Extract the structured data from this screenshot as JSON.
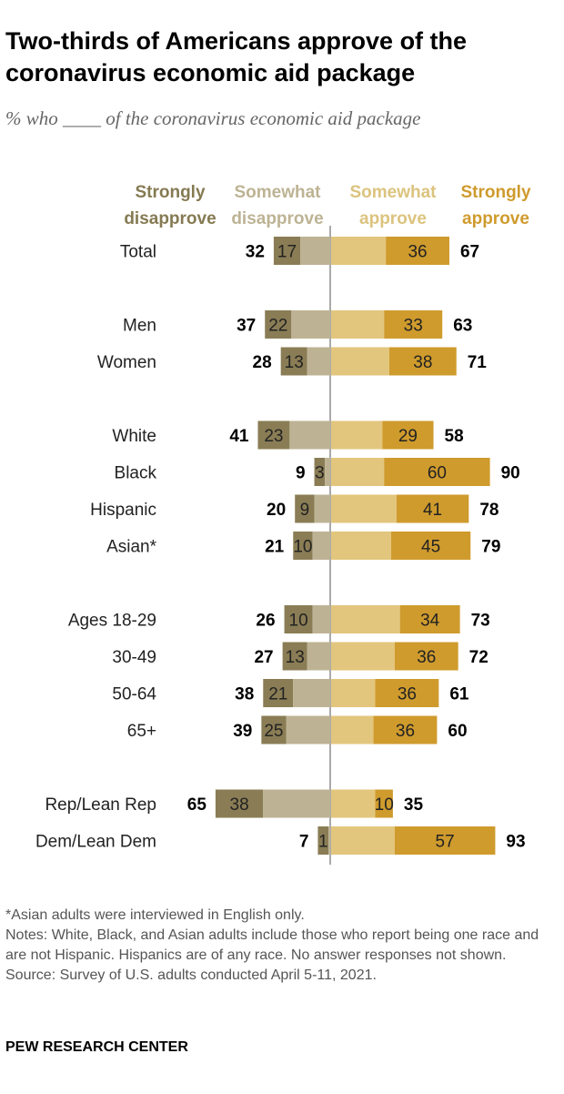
{
  "title": "Two-thirds of Americans approve of the coronavirus economic aid package",
  "subtitle": "% who ____ of the coronavirus economic aid package",
  "chart_data": {
    "type": "bar",
    "orientation": "horizontal-diverging",
    "legend": [
      {
        "name": "Strongly disapprove",
        "color": "#8a7d55"
      },
      {
        "name": "Somewhat disapprove",
        "color": "#bdb394"
      },
      {
        "name": "Somewhat approve",
        "color": "#e3c67d"
      },
      {
        "name": "Strongly approve",
        "color": "#cf9b2d"
      }
    ],
    "legend_placement": "top",
    "groups": [
      [
        {
          "label": "Total",
          "disapprove_total": 32,
          "strongly_disapprove": 17,
          "strongly_approve": 36,
          "approve_total": 67
        }
      ],
      [
        {
          "label": "Men",
          "disapprove_total": 37,
          "strongly_disapprove": 22,
          "strongly_approve": 33,
          "approve_total": 63
        },
        {
          "label": "Women",
          "disapprove_total": 28,
          "strongly_disapprove": 13,
          "strongly_approve": 38,
          "approve_total": 71
        }
      ],
      [
        {
          "label": "White",
          "disapprove_total": 41,
          "strongly_disapprove": 23,
          "strongly_approve": 29,
          "approve_total": 58
        },
        {
          "label": "Black",
          "disapprove_total": 9,
          "strongly_disapprove": 3,
          "strongly_approve": 60,
          "approve_total": 90
        },
        {
          "label": "Hispanic",
          "disapprove_total": 20,
          "strongly_disapprove": 9,
          "strongly_approve": 41,
          "approve_total": 78
        },
        {
          "label": "Asian*",
          "disapprove_total": 21,
          "strongly_disapprove": 10,
          "strongly_approve": 45,
          "approve_total": 79
        }
      ],
      [
        {
          "label": "Ages 18-29",
          "disapprove_total": 26,
          "strongly_disapprove": 10,
          "strongly_approve": 34,
          "approve_total": 73
        },
        {
          "label": "30-49",
          "disapprove_total": 27,
          "strongly_disapprove": 13,
          "strongly_approve": 36,
          "approve_total": 72
        },
        {
          "label": "50-64",
          "disapprove_total": 38,
          "strongly_disapprove": 21,
          "strongly_approve": 36,
          "approve_total": 61
        },
        {
          "label": "65+",
          "disapprove_total": 39,
          "strongly_disapprove": 25,
          "strongly_approve": 36,
          "approve_total": 60
        }
      ],
      [
        {
          "label": "Rep/Lean Rep",
          "disapprove_total": 65,
          "strongly_disapprove": 38,
          "strongly_approve": 10,
          "approve_total": 35
        },
        {
          "label": "Dem/Lean Dem",
          "disapprove_total": 7,
          "strongly_disapprove": 1,
          "strongly_approve": 57,
          "approve_total": 93
        }
      ]
    ]
  },
  "notes": [
    "*Asian adults were interviewed in English only.",
    "Notes: White, Black, and Asian adults include those who report being one race and are not Hispanic. Hispanics are of any race. No answer responses not shown.",
    "Source: Survey of U.S. adults conducted April 5-11, 2021."
  ],
  "brand": "PEW RESEARCH CENTER"
}
